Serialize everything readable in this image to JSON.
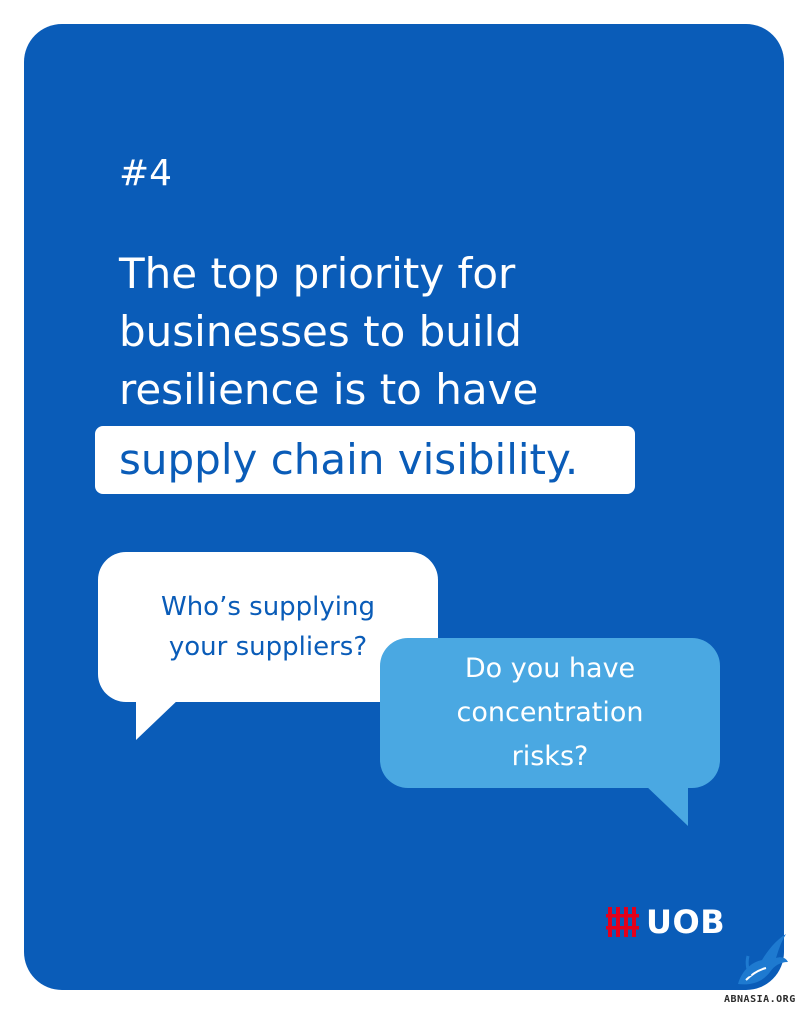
{
  "card": {
    "eyebrow": "#4",
    "headline_lines": [
      "The top priority for",
      "businesses to build",
      "resilience is to have"
    ],
    "highlight": "supply chain visibility."
  },
  "bubbles": [
    {
      "text": "Who’s supplying\nyour suppliers?"
    },
    {
      "text": "Do you have\nconcentration\nrisks?"
    }
  ],
  "logo": {
    "text": "UOB",
    "mark_icon": "uob-logo-icon"
  },
  "watermark": {
    "text": "ABNASIA.ORG",
    "icon": "bird-icon"
  },
  "colors": {
    "card_background": "#0a5cb8",
    "bubble_light": "#ffffff",
    "bubble_blue": "#4aa8e2",
    "logo_red": "#e3001b",
    "text_white": "#ffffff"
  }
}
